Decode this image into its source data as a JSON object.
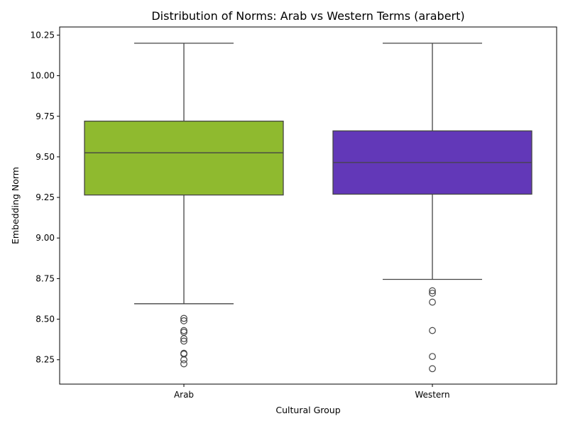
{
  "chart_data": {
    "type": "box",
    "title": "Distribution of Norms: Arab vs Western Terms (arabert)",
    "xlabel": "Cultural Group",
    "ylabel": "Embedding Norm",
    "categories": [
      "Arab",
      "Western"
    ],
    "ylim": [
      8.1,
      10.3
    ],
    "yticks": [
      8.25,
      8.5,
      8.75,
      9.0,
      9.25,
      9.5,
      9.75,
      10.0,
      10.25
    ],
    "ytick_labels": [
      "8.25",
      "8.50",
      "8.75",
      "9.00",
      "9.25",
      "9.50",
      "9.75",
      "10.00",
      "10.25"
    ],
    "grid": false,
    "boxes": [
      {
        "name": "Arab",
        "color": "#8fba2f",
        "whisker_low": 8.595,
        "q1": 9.265,
        "median": 9.525,
        "q3": 9.72,
        "whisker_high": 10.2,
        "outliers": [
          8.505,
          8.49,
          8.43,
          8.42,
          8.38,
          8.365,
          8.29,
          8.285,
          8.25,
          8.225
        ]
      },
      {
        "name": "Western",
        "color": "#6238b8",
        "whisker_low": 8.745,
        "q1": 9.27,
        "median": 9.465,
        "q3": 9.66,
        "whisker_high": 10.2,
        "outliers": [
          8.675,
          8.66,
          8.605,
          8.43,
          8.27,
          8.195
        ]
      }
    ]
  }
}
